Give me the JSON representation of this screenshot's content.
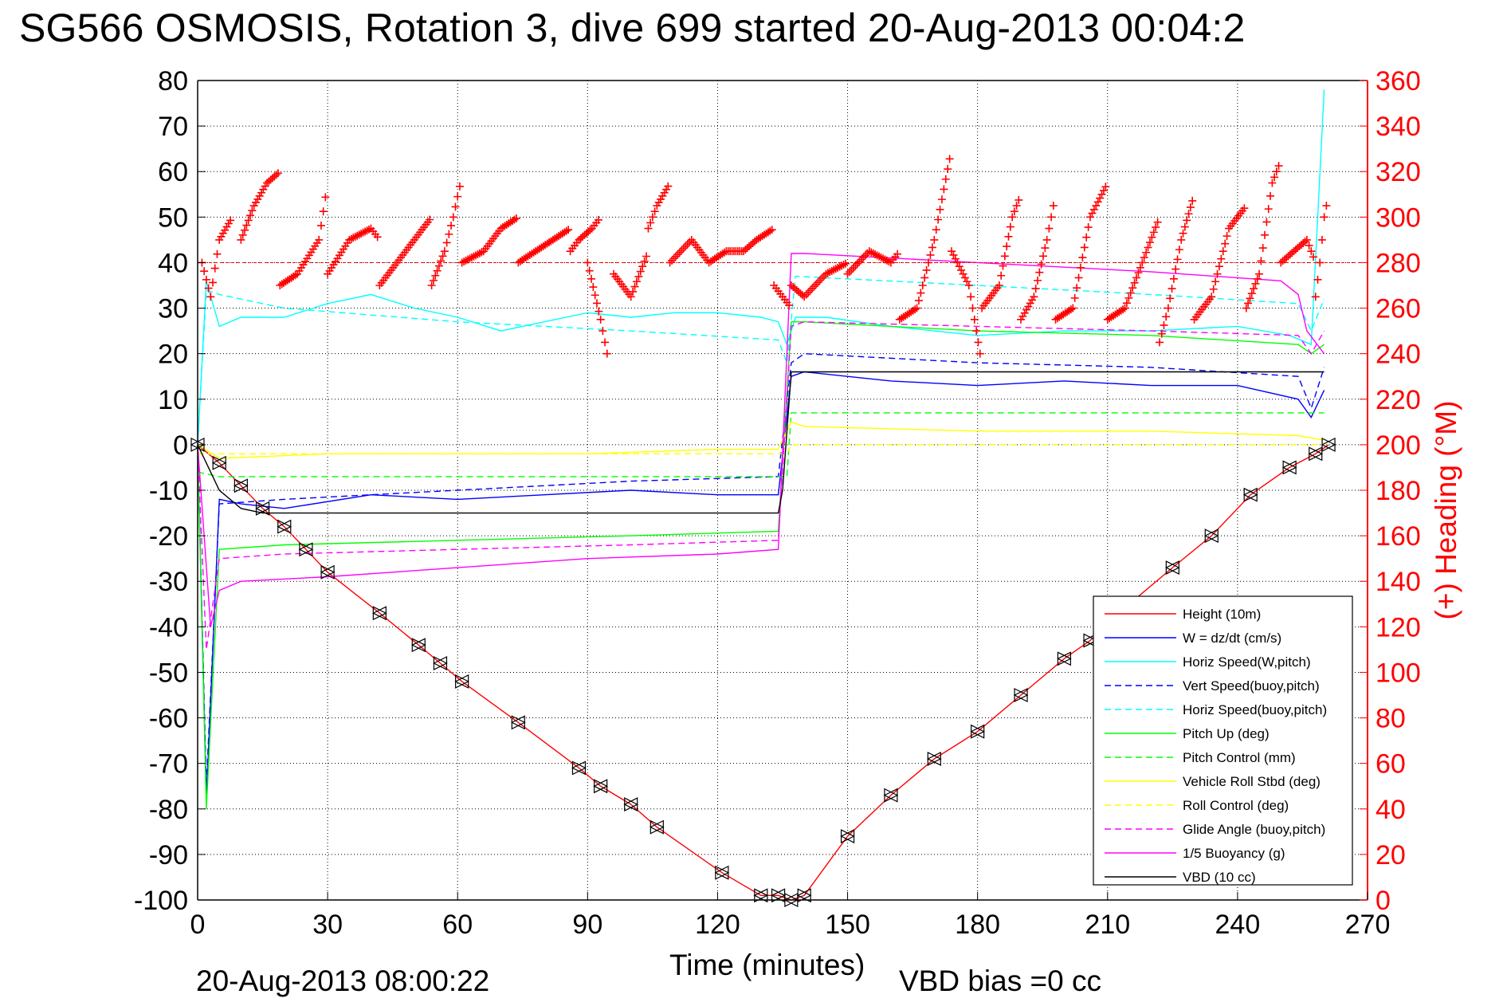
{
  "page": {
    "title": "SG566 OSMOSIS, Rotation 3, dive 699 started 20-Aug-2013 00:04:2",
    "footer_date": "20-Aug-2013 08:00:22",
    "vbd_bias": "VBD bias =0 cc"
  },
  "chart_data": {
    "type": "line",
    "xlabel": "Time (minutes)",
    "y2label": "(+) Heading (°M)",
    "xlim": [
      0,
      270
    ],
    "ylim": [
      -100,
      80
    ],
    "y2lim": [
      0,
      360
    ],
    "xticks": [
      0,
      30,
      60,
      90,
      120,
      150,
      180,
      210,
      240,
      270
    ],
    "yticks": [
      -100,
      -90,
      -80,
      -70,
      -60,
      -50,
      -40,
      -30,
      -20,
      -10,
      0,
      10,
      20,
      30,
      40,
      50,
      60,
      70,
      80
    ],
    "y2ticks": [
      0,
      20,
      40,
      60,
      80,
      100,
      120,
      140,
      160,
      180,
      200,
      220,
      240,
      260,
      280,
      300,
      320,
      340,
      360
    ],
    "grid": true,
    "legend_position": "bottom-right",
    "colors": {
      "red": "#ff0000",
      "blue": "#0000ff",
      "cyan": "#00ffff",
      "green": "#00ff00",
      "yellow": "#ffff00",
      "magenta": "#ff00ff",
      "black": "#000000"
    },
    "series": [
      {
        "name": "Height (10m)",
        "color": "#ff0000",
        "style": "solid",
        "markers": "triangles",
        "x": [
          0,
          5,
          10,
          15,
          20,
          25,
          30,
          42,
          51,
          56,
          61,
          74,
          88,
          93,
          100,
          106,
          121,
          130,
          134,
          137,
          140,
          150,
          160,
          170,
          180,
          190,
          200,
          206,
          215,
          225,
          234,
          243,
          252,
          258,
          261
        ],
        "y": [
          0,
          -4,
          -9,
          -14,
          -18,
          -23,
          -28,
          -37,
          -44,
          -48,
          -52,
          -61,
          -71,
          -75,
          -79,
          -84,
          -94,
          -99,
          -99,
          -100,
          -99,
          -86,
          -77,
          -69,
          -63,
          -55,
          -47,
          -43,
          -35,
          -27,
          -20,
          -11,
          -5,
          -2,
          0
        ]
      },
      {
        "name": "W = dz/dt (cm/s)",
        "color": "#0000ff",
        "style": "solid",
        "x": [
          0,
          2,
          5,
          10,
          20,
          40,
          60,
          80,
          100,
          120,
          134,
          137,
          140,
          160,
          180,
          200,
          220,
          240,
          254,
          257,
          260
        ],
        "y": [
          0,
          -78,
          -12,
          -13,
          -14,
          -11,
          -12,
          -11,
          -10,
          -11,
          -11,
          15,
          16,
          14,
          13,
          14,
          13,
          13,
          10,
          6,
          12
        ]
      },
      {
        "name": "Horiz Speed(W,pitch)",
        "color": "#00ffff",
        "style": "solid",
        "x": [
          0,
          2,
          5,
          10,
          20,
          30,
          40,
          50,
          60,
          70,
          80,
          90,
          100,
          110,
          120,
          130,
          134,
          136,
          138,
          145,
          160,
          180,
          200,
          220,
          240,
          252,
          257,
          260
        ],
        "y": [
          0,
          36,
          26,
          28,
          28,
          31,
          33,
          30,
          28,
          25,
          27,
          29,
          28,
          29,
          29,
          28,
          27,
          22,
          28,
          28,
          26,
          24,
          25,
          25,
          26,
          24,
          22,
          78
        ]
      },
      {
        "name": "Vert Speed(buoy,pitch)",
        "color": "#0000ff",
        "style": "dashed",
        "x": [
          0,
          2,
          5,
          20,
          60,
          100,
          134,
          137,
          140,
          180,
          220,
          254,
          257,
          260
        ],
        "y": [
          0,
          -75,
          -13,
          -12,
          -10,
          -8,
          -7,
          18,
          20,
          18,
          17,
          15,
          8,
          17
        ]
      },
      {
        "name": "Horiz Speed(buoy,pitch)",
        "color": "#00ffff",
        "style": "dashed",
        "x": [
          0,
          2,
          5,
          20,
          60,
          100,
          134,
          136,
          138,
          180,
          220,
          254,
          257,
          260
        ],
        "y": [
          0,
          34,
          33,
          30,
          27,
          25,
          23,
          18,
          37,
          35,
          33,
          31,
          25,
          32
        ]
      },
      {
        "name": "Pitch Up (deg)",
        "color": "#00ff00",
        "style": "solid",
        "x": [
          0,
          2,
          5,
          20,
          60,
          100,
          134,
          137,
          140,
          180,
          220,
          254,
          257,
          260
        ],
        "y": [
          0,
          -80,
          -23,
          -22,
          -21,
          -20,
          -19,
          27,
          27,
          25,
          24,
          22,
          20,
          22
        ]
      },
      {
        "name": "Pitch Control (mm)",
        "color": "#00ff00",
        "style": "dashed",
        "x": [
          0,
          5,
          134,
          136,
          137,
          254,
          260
        ],
        "y": [
          -6,
          -7,
          -7,
          -7,
          7,
          7,
          7
        ]
      },
      {
        "name": "Vehicle Roll Stbd (deg)",
        "color": "#ffff00",
        "style": "solid",
        "x": [
          0,
          5,
          30,
          60,
          90,
          120,
          134,
          137,
          140,
          180,
          220,
          254,
          260
        ],
        "y": [
          0,
          -3,
          -2,
          -2,
          -2,
          -1,
          -1,
          5,
          4,
          3,
          3,
          2,
          1
        ]
      },
      {
        "name": "Roll Control (deg)",
        "color": "#ffff00",
        "style": "dashed",
        "x": [
          0,
          5,
          134,
          136,
          137,
          254,
          260
        ],
        "y": [
          -2,
          -2,
          -2,
          -2,
          0,
          0,
          0
        ]
      },
      {
        "name": "Glide Angle (buoy,pitch)",
        "color": "#ff00ff",
        "style": "dashed",
        "x": [
          0,
          2,
          5,
          20,
          60,
          100,
          134,
          137,
          140,
          180,
          220,
          254,
          257,
          260
        ],
        "y": [
          0,
          -45,
          -25,
          -24,
          -23,
          -22,
          -21,
          26,
          27,
          26,
          25,
          24,
          20,
          25
        ]
      },
      {
        "name": "1/5 Buoyancy (g)",
        "color": "#ff00ff",
        "style": "solid",
        "x": [
          0,
          3,
          5,
          10,
          30,
          60,
          90,
          120,
          134,
          137,
          140,
          180,
          220,
          250,
          254,
          256,
          260
        ],
        "y": [
          0,
          -40,
          -32,
          -30,
          -29,
          -27,
          -25,
          -24,
          -23,
          42,
          42,
          40,
          38,
          36,
          33,
          25,
          20
        ]
      },
      {
        "name": "VBD (10 cc)",
        "color": "#000000",
        "style": "solid",
        "x": [
          0,
          5,
          10,
          15,
          134,
          135,
          137,
          260
        ],
        "y": [
          0,
          -10,
          -14,
          -15,
          -15,
          -10,
          16,
          16
        ]
      }
    ],
    "heading": {
      "name": "(+) Heading",
      "color": "#ff0000",
      "marker": "+",
      "reference_line": 280,
      "segments": [
        {
          "x": [
            1,
            3,
            5,
            8
          ],
          "y": [
            280,
            265,
            290,
            300
          ]
        },
        {
          "x": [
            10,
            13,
            16,
            19
          ],
          "y": [
            290,
            305,
            315,
            320
          ]
        },
        {
          "x": [
            19,
            23,
            28,
            30
          ],
          "y": [
            270,
            275,
            290,
            315
          ]
        },
        {
          "x": [
            30,
            35,
            40,
            42
          ],
          "y": [
            275,
            290,
            295,
            290
          ]
        },
        {
          "x": [
            42,
            46,
            50,
            54
          ],
          "y": [
            270,
            280,
            290,
            300
          ]
        },
        {
          "x": [
            54,
            57,
            59,
            61
          ],
          "y": [
            270,
            285,
            300,
            318
          ]
        },
        {
          "x": [
            61,
            66,
            70,
            74
          ],
          "y": [
            280,
            285,
            295,
            300
          ]
        },
        {
          "x": [
            74,
            78,
            82,
            86
          ],
          "y": [
            280,
            285,
            290,
            295
          ]
        },
        {
          "x": [
            86,
            88,
            91,
            93
          ],
          "y": [
            285,
            290,
            295,
            300
          ]
        },
        {
          "x": [
            90,
            93,
            95
          ],
          "y": [
            280,
            255,
            235
          ]
        },
        {
          "x": [
            96,
            100,
            104
          ],
          "y": [
            275,
            265,
            285
          ]
        },
        {
          "x": [
            104,
            106,
            109
          ],
          "y": [
            295,
            305,
            315
          ]
        },
        {
          "x": [
            109,
            114,
            118,
            122
          ],
          "y": [
            280,
            290,
            280,
            285
          ]
        },
        {
          "x": [
            122,
            126,
            129,
            133
          ],
          "y": [
            285,
            285,
            290,
            295
          ]
        },
        {
          "x": [
            133,
            135,
            137
          ],
          "y": [
            270,
            265,
            260
          ]
        },
        {
          "x": [
            137,
            140,
            145,
            150
          ],
          "y": [
            270,
            265,
            275,
            280
          ]
        },
        {
          "x": [
            150,
            155,
            160,
            162
          ],
          "y": [
            275,
            285,
            280,
            285
          ]
        },
        {
          "x": [
            162,
            166,
            170,
            174
          ],
          "y": [
            255,
            260,
            290,
            330
          ]
        },
        {
          "x": [
            174,
            178,
            181
          ],
          "y": [
            285,
            270,
            235
          ]
        },
        {
          "x": [
            181,
            185,
            188,
            190
          ],
          "y": [
            260,
            270,
            300,
            310
          ]
        },
        {
          "x": [
            190,
            193,
            196,
            198
          ],
          "y": [
            255,
            265,
            290,
            310
          ]
        },
        {
          "x": [
            198,
            202,
            206,
            210
          ],
          "y": [
            255,
            260,
            300,
            315
          ]
        },
        {
          "x": [
            210,
            214,
            218,
            222
          ],
          "y": [
            255,
            260,
            280,
            300
          ]
        },
        {
          "x": [
            222,
            224,
            227,
            230
          ],
          "y": [
            245,
            260,
            290,
            310
          ]
        },
        {
          "x": [
            230,
            234,
            238,
            242
          ],
          "y": [
            255,
            265,
            295,
            305
          ]
        },
        {
          "x": [
            242,
            245,
            248,
            250
          ],
          "y": [
            260,
            275,
            315,
            325
          ]
        },
        {
          "x": [
            250,
            253,
            256,
            258
          ],
          "y": [
            280,
            285,
            290,
            280
          ]
        },
        {
          "x": [
            258,
            259,
            260,
            261
          ],
          "y": [
            265,
            280,
            300,
            310
          ]
        }
      ]
    }
  }
}
